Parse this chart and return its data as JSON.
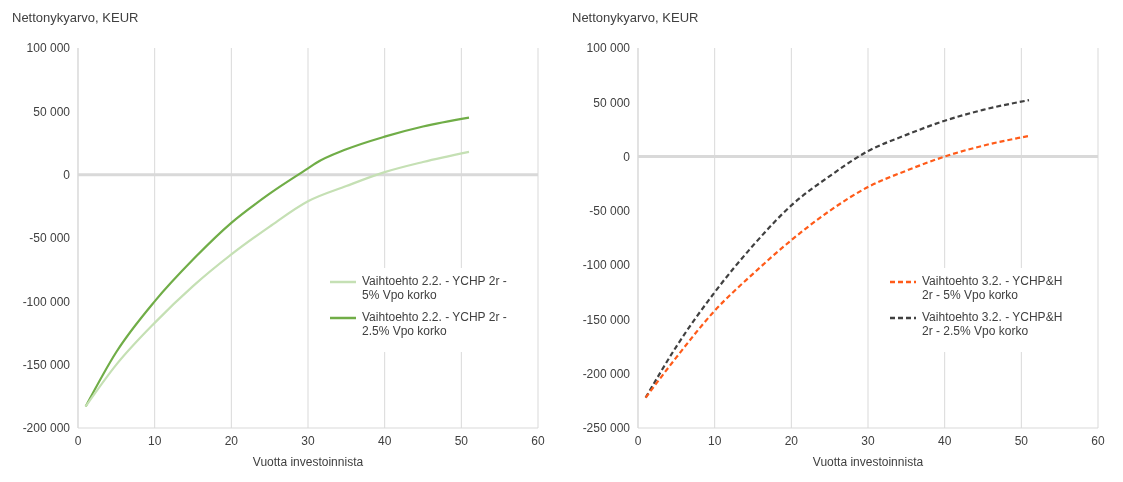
{
  "chart_data": [
    {
      "type": "line",
      "ylabel": "Nettonykyarvo, KEUR",
      "xlabel": "Vuotta investoinnista",
      "xlim": [
        0,
        60
      ],
      "xticks": [
        0,
        10,
        20,
        30,
        40,
        50,
        60
      ],
      "ylim": [
        -200000,
        100000
      ],
      "yticks": [
        {
          "value": -200000,
          "label": "-200 000"
        },
        {
          "value": -150000,
          "label": "-150 000"
        },
        {
          "value": -100000,
          "label": "-100 000"
        },
        {
          "value": -50000,
          "label": "-50 000"
        },
        0,
        {
          "value": 50000,
          "label": "50 000"
        },
        {
          "value": 100000,
          "label": "100 000"
        }
      ],
      "grid": "x",
      "legend": "right",
      "ref_lines": [
        {
          "axis": "y",
          "value": 0,
          "color": "#d9d9d9"
        }
      ],
      "series": [
        {
          "name": "Vaihtoehto 2.2. - YCHP 2r - 5% Vpo korko",
          "color": "#c5e0b4",
          "line_style": "solid",
          "x": [
            1,
            5,
            10,
            15,
            20,
            25,
            30,
            35,
            40,
            45,
            51
          ],
          "values": [
            -183000,
            -150000,
            -117000,
            -88000,
            -63000,
            -41000,
            -21000,
            -9000,
            2000,
            10000,
            18000
          ]
        },
        {
          "name": "Vaihtoehto 2.2. - YCHP 2r - 2.5% Vpo korko",
          "color": "#70ad47",
          "line_style": "solid",
          "x": [
            1,
            5,
            10,
            15,
            20,
            25,
            30,
            31,
            35,
            40,
            45,
            51
          ],
          "values": [
            -183000,
            -140000,
            -100000,
            -67000,
            -38000,
            -15000,
            5000,
            9000,
            20000,
            30000,
            38000,
            45000
          ]
        }
      ]
    },
    {
      "type": "line",
      "ylabel": "Nettonykyarvo, KEUR",
      "xlabel": "Vuotta investoinnista",
      "xlim": [
        0,
        60
      ],
      "xticks": [
        0,
        10,
        20,
        30,
        40,
        50,
        60
      ],
      "ylim": [
        -250000,
        100000
      ],
      "yticks": [
        {
          "value": -250000,
          "label": "-250 000"
        },
        {
          "value": -200000,
          "label": "-200 000"
        },
        {
          "value": -150000,
          "label": "-150 000"
        },
        {
          "value": -100000,
          "label": "-100 000"
        },
        {
          "value": -50000,
          "label": "-50 000"
        },
        0,
        {
          "value": 50000,
          "label": "50 000"
        },
        {
          "value": 100000,
          "label": "100 000"
        }
      ],
      "grid": "x",
      "legend": "right",
      "ref_lines": [
        {
          "axis": "y",
          "value": 0,
          "color": "#d9d9d9"
        }
      ],
      "series": [
        {
          "name": "Vaihtoehto 3.2. - YCHP&H 2r - 5% Vpo korko",
          "color": "#ff5b19",
          "line_style": "dashed",
          "x": [
            1,
            5,
            10,
            15,
            20,
            25,
            30,
            35,
            40,
            45,
            51
          ],
          "values": [
            -222000,
            -185000,
            -142000,
            -108000,
            -77000,
            -50000,
            -28000,
            -13000,
            0,
            10000,
            19000
          ]
        },
        {
          "name": "Vaihtoehto 3.2. - YCHP&H 2r - 2.5% Vpo korko",
          "color": "#404040",
          "line_style": "dashed",
          "x": [
            1,
            5,
            10,
            15,
            20,
            25,
            30,
            35,
            40,
            45,
            51
          ],
          "values": [
            -222000,
            -175000,
            -125000,
            -82000,
            -45000,
            -18000,
            5000,
            20000,
            33000,
            43000,
            52000
          ]
        }
      ]
    }
  ]
}
